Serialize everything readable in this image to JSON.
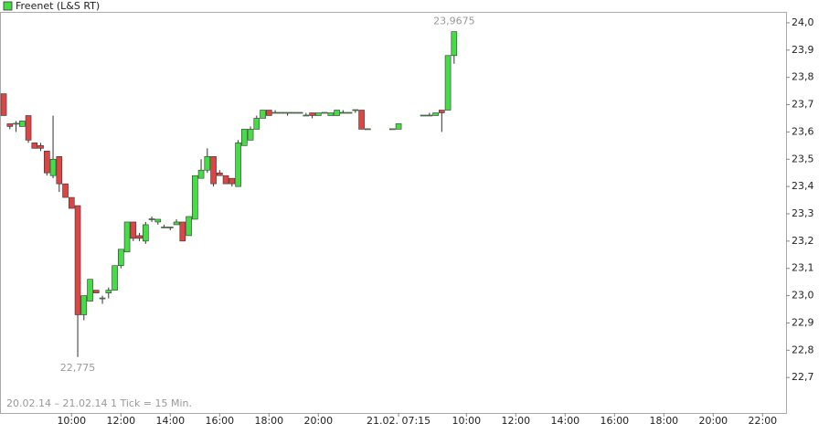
{
  "chart_data": {
    "type": "candlestick",
    "subtitle": "20.02.14 – 21.02.14   1 Tick = 15 Min.",
    "series": [
      {
        "name": "Freenet (L&S RT)",
        "color": "#44dd44",
        "down_color": "#dd4444",
        "x": [
          0,
          1,
          2,
          3,
          4,
          5,
          6,
          7,
          8,
          9,
          10,
          11,
          12,
          13,
          14,
          15,
          16,
          17,
          18,
          19,
          20,
          21,
          22,
          23,
          24,
          25,
          26,
          27,
          28,
          29,
          30,
          31,
          32,
          33,
          34,
          35,
          36,
          37,
          38,
          39,
          40,
          41,
          42,
          43,
          44,
          45,
          46,
          47,
          48,
          49,
          50,
          51,
          52,
          53,
          54,
          55,
          56,
          57,
          58,
          59,
          63,
          64,
          68,
          69,
          70,
          71,
          72,
          73
        ],
        "open": [
          23.74,
          23.63,
          23.63,
          23.62,
          23.66,
          23.56,
          23.55,
          23.53,
          23.44,
          23.51,
          23.41,
          23.36,
          23.33,
          22.93,
          22.98,
          23.02,
          22.99,
          23.01,
          23.02,
          23.11,
          23.16,
          23.27,
          23.22,
          23.2,
          23.28,
          23.27,
          23.25,
          23.25,
          23.26,
          23.27,
          23.22,
          23.28,
          23.43,
          23.46,
          23.51,
          23.45,
          23.44,
          23.43,
          23.4,
          23.55,
          23.57,
          23.61,
          23.65,
          23.68,
          23.67,
          23.67,
          23.67,
          23.67,
          23.67,
          23.66,
          23.67,
          23.66,
          23.67,
          23.66,
          23.66,
          23.67,
          23.67,
          23.68,
          23.68,
          23.61,
          23.61,
          23.61,
          23.66,
          23.66,
          23.66,
          23.68,
          23.68,
          23.88
        ],
        "high": [
          23.74,
          23.63,
          23.64,
          23.64,
          23.66,
          23.56,
          23.56,
          23.53,
          23.66,
          23.51,
          23.41,
          23.36,
          23.33,
          23.0,
          23.06,
          23.02,
          23.0,
          23.03,
          23.11,
          23.17,
          23.27,
          23.27,
          23.23,
          23.27,
          23.29,
          23.28,
          23.26,
          23.25,
          23.28,
          23.27,
          23.29,
          23.44,
          23.5,
          23.54,
          23.51,
          23.46,
          23.44,
          23.43,
          23.57,
          23.61,
          23.62,
          23.66,
          23.68,
          23.68,
          23.68,
          23.67,
          23.67,
          23.67,
          23.67,
          23.67,
          23.67,
          23.67,
          23.67,
          23.67,
          23.68,
          23.68,
          23.67,
          23.68,
          23.68,
          23.61,
          23.61,
          23.63,
          23.66,
          23.67,
          23.67,
          23.68,
          23.88,
          23.9675
        ],
        "low": [
          23.66,
          23.61,
          23.6,
          23.62,
          23.56,
          23.54,
          23.53,
          23.44,
          23.43,
          23.38,
          23.36,
          23.32,
          22.775,
          22.91,
          22.98,
          23.01,
          22.97,
          22.99,
          23.02,
          23.1,
          23.16,
          23.2,
          23.2,
          23.19,
          23.27,
          23.26,
          23.25,
          23.24,
          23.26,
          23.2,
          23.22,
          23.28,
          23.43,
          23.45,
          23.4,
          23.44,
          23.41,
          23.4,
          23.4,
          23.55,
          23.57,
          23.61,
          23.65,
          23.66,
          23.67,
          23.67,
          23.66,
          23.67,
          23.67,
          23.66,
          23.65,
          23.66,
          23.67,
          23.66,
          23.66,
          23.67,
          23.67,
          23.67,
          23.61,
          23.61,
          23.61,
          23.61,
          23.66,
          23.66,
          23.66,
          23.6,
          23.68,
          23.85
        ],
        "close": [
          23.66,
          23.62,
          23.63,
          23.64,
          23.57,
          23.54,
          23.54,
          23.45,
          23.5,
          23.41,
          23.36,
          23.32,
          22.93,
          23.0,
          23.06,
          23.01,
          22.99,
          23.02,
          23.11,
          23.17,
          23.27,
          23.21,
          23.21,
          23.26,
          23.28,
          23.28,
          23.25,
          23.25,
          23.27,
          23.2,
          23.29,
          23.44,
          23.46,
          23.51,
          23.41,
          23.44,
          23.41,
          23.41,
          23.56,
          23.61,
          23.61,
          23.65,
          23.68,
          23.66,
          23.67,
          23.67,
          23.67,
          23.67,
          23.67,
          23.66,
          23.66,
          23.67,
          23.67,
          23.67,
          23.68,
          23.67,
          23.67,
          23.68,
          23.61,
          23.61,
          23.61,
          23.63,
          23.66,
          23.66,
          23.67,
          23.67,
          23.88,
          23.9675
        ]
      }
    ],
    "annotations": [
      {
        "label": "23,9675",
        "value": 23.9675,
        "x": 73
      },
      {
        "label": "22,775",
        "value": 22.775,
        "x": 12
      }
    ],
    "xlim": [
      -0.6,
      126.8
    ],
    "xticks": [
      {
        "value": 11,
        "label": "10:00"
      },
      {
        "value": 19,
        "label": "12:00"
      },
      {
        "value": 27,
        "label": "14:00"
      },
      {
        "value": 35,
        "label": "16:00"
      },
      {
        "value": 43,
        "label": "18:00"
      },
      {
        "value": 51,
        "label": "20:00"
      },
      {
        "value": 64,
        "label": "21.02. 07:15"
      },
      {
        "value": 75,
        "label": "10:00"
      },
      {
        "value": 83,
        "label": "12:00"
      },
      {
        "value": 91,
        "label": "14:00"
      },
      {
        "value": 99,
        "label": "16:00"
      },
      {
        "value": 107,
        "label": "18:00"
      },
      {
        "value": 115,
        "label": "20:00"
      },
      {
        "value": 123,
        "label": "22:00"
      }
    ],
    "ylim": [
      22.57,
      24.04
    ],
    "yticks": [
      {
        "value": 22.7,
        "label": "22,7"
      },
      {
        "value": 22.8,
        "label": "22,8"
      },
      {
        "value": 22.9,
        "label": "22,9"
      },
      {
        "value": 23.0,
        "label": "23,0"
      },
      {
        "value": 23.1,
        "label": "23,1"
      },
      {
        "value": 23.2,
        "label": "23,2"
      },
      {
        "value": 23.3,
        "label": "23,3"
      },
      {
        "value": 23.4,
        "label": "23,4"
      },
      {
        "value": 23.5,
        "label": "23,5"
      },
      {
        "value": 23.6,
        "label": "23,6"
      },
      {
        "value": 23.7,
        "label": "23,7"
      },
      {
        "value": 23.8,
        "label": "23,8"
      },
      {
        "value": 23.9,
        "label": "23,9"
      },
      {
        "value": 24.0,
        "label": "24,0"
      }
    ]
  }
}
